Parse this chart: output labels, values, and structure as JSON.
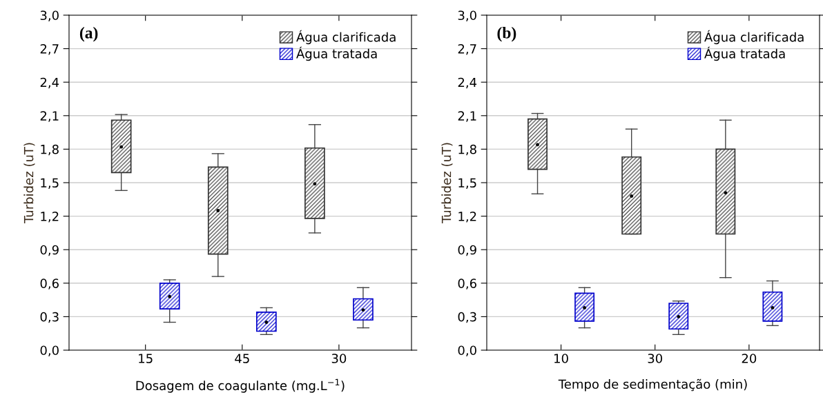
{
  "chart_data": [
    {
      "type": "box",
      "annotations": [
        "(a)"
      ],
      "xlabel": "Dosagem de coagulante (mg.L$^{−1}$)",
      "ylabel": "Turbidez (uT)",
      "categories": [
        "15",
        "45",
        "30"
      ],
      "ylim": [
        0,
        3.0
      ],
      "yticks": [
        {
          "value": 0,
          "label": "0,0"
        },
        {
          "value": 0.3,
          "label": "0,3"
        },
        {
          "value": 0.6,
          "label": "0,6"
        },
        {
          "value": 0.9,
          "label": "0,9"
        },
        {
          "value": 1.2,
          "label": "1,2"
        },
        {
          "value": 1.5,
          "label": "1,5"
        },
        {
          "value": 1.8,
          "label": "1,8"
        },
        {
          "value": 2.1,
          "label": "2,1"
        },
        {
          "value": 2.4,
          "label": "2,4"
        },
        {
          "value": 2.7,
          "label": "2,7"
        },
        {
          "value": 3.0,
          "label": "3,0"
        }
      ],
      "grid": "y",
      "legend": "top right",
      "series": [
        {
          "name": "Água clarificada",
          "color": "#333333",
          "boxes": [
            {
              "low": 1.43,
              "q1": 1.59,
              "median": 1.82,
              "q3": 2.06,
              "high": 2.11
            },
            {
              "low": 0.66,
              "q1": 0.86,
              "median": 1.25,
              "q3": 1.64,
              "high": 1.76
            },
            {
              "low": 1.05,
              "q1": 1.18,
              "median": 1.49,
              "q3": 1.81,
              "high": 2.02
            }
          ]
        },
        {
          "name": "Água tratada",
          "color": "#0000cc",
          "boxes": [
            {
              "low": 0.25,
              "q1": 0.37,
              "median": 0.48,
              "q3": 0.6,
              "high": 0.63
            },
            {
              "low": 0.14,
              "q1": 0.17,
              "median": 0.25,
              "q3": 0.34,
              "high": 0.38
            },
            {
              "low": 0.2,
              "q1": 0.27,
              "median": 0.36,
              "q3": 0.46,
              "high": 0.56
            }
          ]
        }
      ]
    },
    {
      "type": "box",
      "annotations": [
        "(b)"
      ],
      "xlabel": "Tempo de sedimentação (min)",
      "ylabel": "Turbidez (uT)",
      "categories": [
        "10",
        "30",
        "20"
      ],
      "ylim": [
        0,
        3.0
      ],
      "yticks": [
        {
          "value": 0,
          "label": "0,0"
        },
        {
          "value": 0.3,
          "label": "0,3"
        },
        {
          "value": 0.6,
          "label": "0,6"
        },
        {
          "value": 0.9,
          "label": "0,9"
        },
        {
          "value": 1.2,
          "label": "1,2"
        },
        {
          "value": 1.5,
          "label": "1,5"
        },
        {
          "value": 1.8,
          "label": "1,8"
        },
        {
          "value": 2.1,
          "label": "2,1"
        },
        {
          "value": 2.4,
          "label": "2,4"
        },
        {
          "value": 2.7,
          "label": "2,7"
        },
        {
          "value": 3.0,
          "label": "3,0"
        }
      ],
      "grid": "y",
      "legend": "top right",
      "series": [
        {
          "name": "Água clarificada",
          "color": "#333333",
          "boxes": [
            {
              "low": 1.4,
              "q1": 1.62,
              "median": 1.84,
              "q3": 2.07,
              "high": 2.12
            },
            {
              "low": 1.04,
              "q1": 1.04,
              "median": 1.38,
              "q3": 1.73,
              "high": 1.98
            },
            {
              "low": 0.65,
              "q1": 1.04,
              "median": 1.41,
              "q3": 1.8,
              "high": 2.06
            }
          ]
        },
        {
          "name": "Água tratada",
          "color": "#0000cc",
          "boxes": [
            {
              "low": 0.2,
              "q1": 0.26,
              "median": 0.38,
              "q3": 0.51,
              "high": 0.56
            },
            {
              "low": 0.14,
              "q1": 0.19,
              "median": 0.3,
              "q3": 0.42,
              "high": 0.44
            },
            {
              "low": 0.22,
              "q1": 0.26,
              "median": 0.38,
              "q3": 0.52,
              "high": 0.62
            }
          ]
        }
      ]
    }
  ]
}
